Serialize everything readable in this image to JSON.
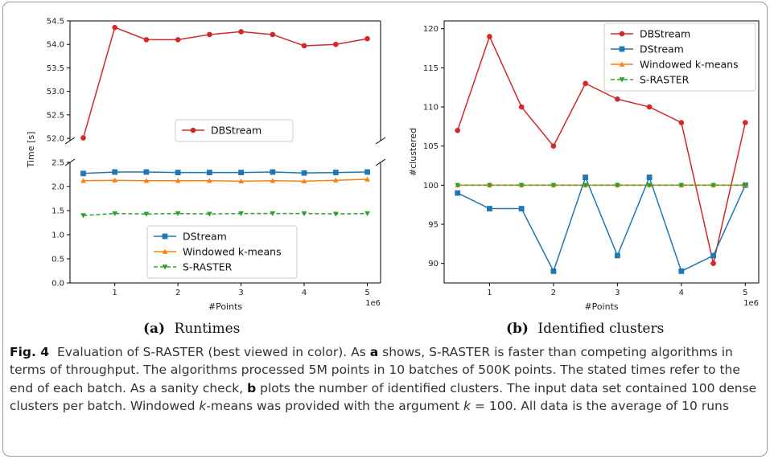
{
  "chart_data": [
    {
      "type": "line",
      "subcaption_label": "(a)",
      "subcaption_text": "Runtimes",
      "xlabel": "#Points",
      "ylabel": "Time [s]",
      "x_scale_note": "1e6",
      "x": [
        0.5,
        1,
        1.5,
        2,
        2.5,
        3,
        3.5,
        4,
        4.5,
        5
      ],
      "xticks": [
        1,
        2,
        3,
        4,
        5
      ],
      "broken_axis": true,
      "top_ylim": [
        51.95,
        54.5
      ],
      "top_yticks": [
        "52.0",
        "52.5",
        "53.0",
        "53.5",
        "54.0",
        "54.5"
      ],
      "bottom_ylim": [
        0,
        2.5
      ],
      "bottom_yticks": [
        "0.0",
        "0.5",
        "1.0",
        "1.5",
        "2.0",
        "2.5"
      ],
      "series": [
        {
          "name": "DBStream",
          "color": "#d62728",
          "marker": "circle",
          "dash": "solid",
          "panel": "top",
          "values": [
            52.01,
            54.36,
            54.1,
            54.1,
            54.21,
            54.27,
            54.21,
            53.97,
            54.0,
            54.12
          ]
        },
        {
          "name": "DStream",
          "color": "#1f77b4",
          "marker": "square",
          "dash": "solid",
          "panel": "bottom",
          "values": [
            2.27,
            2.3,
            2.3,
            2.29,
            2.29,
            2.29,
            2.3,
            2.28,
            2.29,
            2.3
          ]
        },
        {
          "name": "Windowed k-means",
          "color": "#ff7f0e",
          "marker": "triangle-up",
          "dash": "solid",
          "panel": "bottom",
          "values": [
            2.12,
            2.13,
            2.12,
            2.12,
            2.12,
            2.11,
            2.12,
            2.11,
            2.13,
            2.15
          ]
        },
        {
          "name": "S-RASTER",
          "color": "#2ca02c",
          "marker": "triangle-down",
          "dash": "dashed",
          "panel": "bottom",
          "values": [
            1.4,
            1.44,
            1.43,
            1.44,
            1.43,
            1.44,
            1.44,
            1.44,
            1.43,
            1.44
          ]
        }
      ],
      "legend_top": "center",
      "legend_bottom": "bottom-center"
    },
    {
      "type": "line",
      "subcaption_label": "(b)",
      "subcaption_text": "Identified clusters",
      "xlabel": "#Points",
      "ylabel": "#clustered",
      "x_scale_note": "1e6",
      "x": [
        0.5,
        1,
        1.5,
        2,
        2.5,
        3,
        3.5,
        4,
        4.5,
        5
      ],
      "xticks": [
        1,
        2,
        3,
        4,
        5
      ],
      "ylim": [
        87.5,
        121
      ],
      "yticks": [
        90,
        95,
        100,
        105,
        110,
        115,
        120
      ],
      "series": [
        {
          "name": "DBStream",
          "color": "#d62728",
          "marker": "circle",
          "dash": "solid",
          "values": [
            107,
            119,
            110,
            105,
            113,
            111,
            110,
            108,
            90,
            108
          ]
        },
        {
          "name": "DStream",
          "color": "#1f77b4",
          "marker": "square",
          "dash": "solid",
          "values": [
            99,
            97,
            97,
            89,
            101,
            91,
            101,
            89,
            91,
            100
          ]
        },
        {
          "name": "Windowed k-means",
          "color": "#ff7f0e",
          "marker": "triangle-up",
          "dash": "solid",
          "values": [
            100,
            100,
            100,
            100,
            100,
            100,
            100,
            100,
            100,
            100
          ]
        },
        {
          "name": "S-RASTER",
          "color": "#2ca02c",
          "marker": "triangle-down",
          "dash": "dashed",
          "values": [
            100,
            100,
            100,
            100,
            100,
            100,
            100,
            100,
            100,
            100
          ]
        }
      ],
      "legend": "top-right"
    }
  ],
  "caption": {
    "label": "Fig. 4",
    "segments": [
      {
        "t": "Evaluation of S-RASTER (best viewed in color). As ",
        "s": ""
      },
      {
        "t": "a",
        "s": "b"
      },
      {
        "t": " shows, S-RASTER is faster than competing algorithms in terms of throughput. The algorithms processed 5M points in 10 batches of 500K points. The stated times refer to the end of each batch. As a sanity check, ",
        "s": ""
      },
      {
        "t": "b",
        "s": "b"
      },
      {
        "t": " plots the number of identified clusters. The input data set contained 100 dense clusters per batch. Windowed ",
        "s": ""
      },
      {
        "t": "k",
        "s": "i"
      },
      {
        "t": "-means was provided with the argument ",
        "s": ""
      },
      {
        "t": "k",
        "s": "i"
      },
      {
        "t": " = 100. All data is the average of 10 runs",
        "s": ""
      }
    ]
  }
}
